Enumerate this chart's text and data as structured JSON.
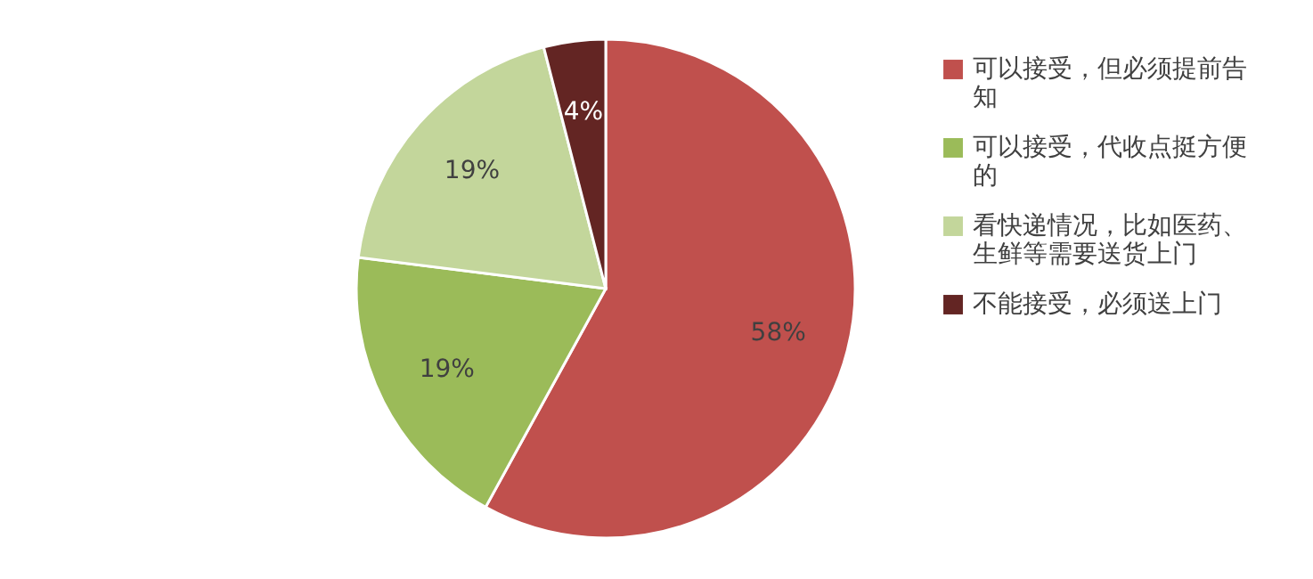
{
  "chart_data": {
    "type": "pie",
    "categories": [
      "可以接受，但必须提前告知",
      "可以接受，代收点挺方便的",
      "看快递情况，比如医药、生鲜等需要送货上门",
      "不能接受，必须送上门"
    ],
    "values": [
      58,
      19,
      19,
      4
    ],
    "colors": [
      "#c0504d",
      "#9bbb59",
      "#c3d69b",
      "#632523"
    ],
    "value_labels": [
      "58%",
      "19%",
      "19%",
      "4%"
    ],
    "legend": "right"
  }
}
